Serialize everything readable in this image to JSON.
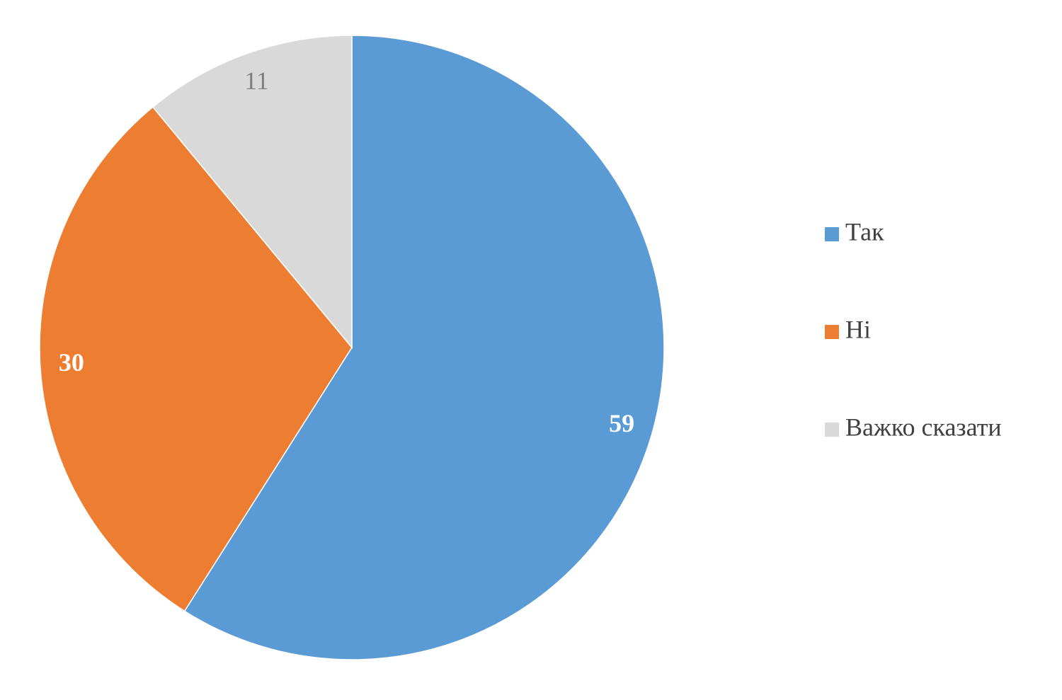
{
  "chart_data": {
    "type": "pie",
    "categories": [
      "Так",
      "Ні",
      "Важко сказати"
    ],
    "values": [
      59,
      30,
      11
    ],
    "colors": [
      "#5b9bd5",
      "#ed7d31",
      "#d9d9d9"
    ]
  }
}
